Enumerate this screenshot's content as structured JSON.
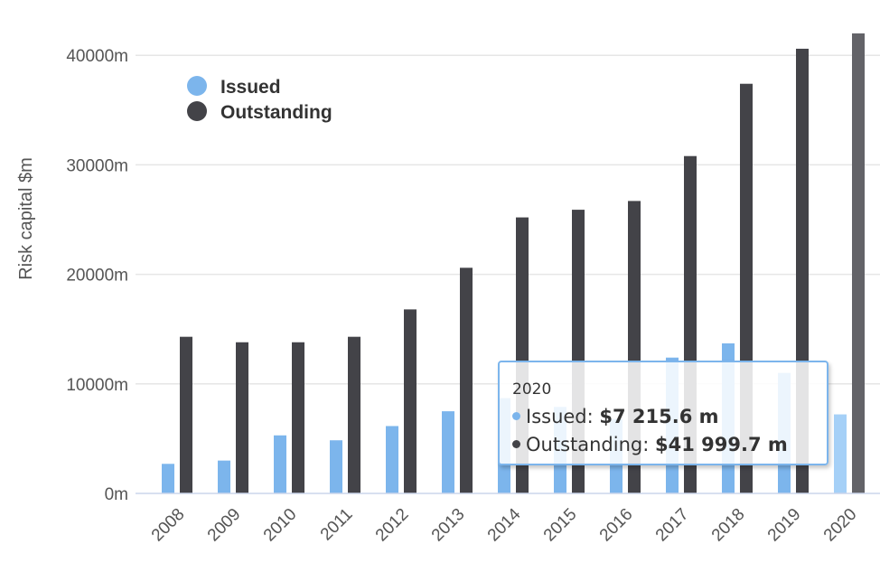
{
  "chart_data": {
    "type": "bar",
    "title": "",
    "xlabel": "",
    "ylabel": "Risk capital $m",
    "ylim": [
      0,
      42000
    ],
    "yticks": [
      0,
      10000,
      20000,
      30000,
      40000
    ],
    "ytick_labels": [
      "0m",
      "10000m",
      "20000m",
      "30000m",
      "40000m"
    ],
    "categories": [
      "2008",
      "2009",
      "2010",
      "2011",
      "2012",
      "2013",
      "2014",
      "2015",
      "2016",
      "2017",
      "2018",
      "2019",
      "2020"
    ],
    "series": [
      {
        "name": "Issued",
        "color": "#7cb5ec",
        "values": [
          2700,
          3000,
          5300,
          4850,
          6150,
          7500,
          8700,
          7900,
          6800,
          12400,
          13700,
          11000,
          7215.6
        ]
      },
      {
        "name": "Outstanding",
        "color": "#434348",
        "values": [
          14300,
          13800,
          13800,
          14300,
          16800,
          20600,
          25200,
          25900,
          26700,
          30800,
          37400,
          40600,
          41999.7
        ]
      }
    ],
    "legend_position": "top-left",
    "grid": true
  },
  "tooltip": {
    "title": "2020",
    "rows": [
      {
        "label": "Issued: ",
        "value": "$7 215.6 m",
        "color": "#7cb5ec"
      },
      {
        "label": "Outstanding: ",
        "value": "$41 999.7 m",
        "color": "#434348"
      }
    ]
  }
}
